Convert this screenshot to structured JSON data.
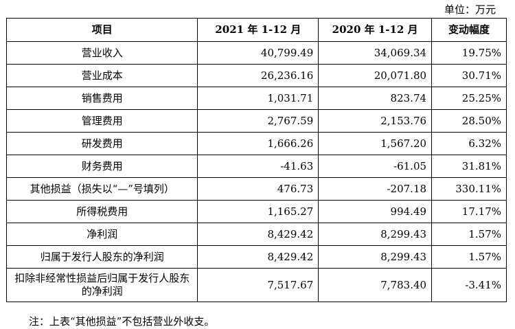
{
  "unit": "单位：万元",
  "table": {
    "headers": [
      "项目",
      "2021 年 1-12 月",
      "2020 年 1-12 月",
      "变动幅度"
    ],
    "rows": [
      {
        "item": "营业收入",
        "y2021": "40,799.49",
        "y2020": "34,069.34",
        "change": "19.75%"
      },
      {
        "item": "营业成本",
        "y2021": "26,236.16",
        "y2020": "20,071.80",
        "change": "30.71%"
      },
      {
        "item": "销售费用",
        "y2021": "1,031.71",
        "y2020": "823.74",
        "change": "25.25%"
      },
      {
        "item": "管理费用",
        "y2021": "2,767.59",
        "y2020": "2,153.76",
        "change": "28.50%"
      },
      {
        "item": "研发费用",
        "y2021": "1,666.26",
        "y2020": "1,567.20",
        "change": "6.32%"
      },
      {
        "item": "财务费用",
        "y2021": "-41.63",
        "y2020": "-61.05",
        "change": "31.81%"
      },
      {
        "item": "其他损益（损失以“—”号填列）",
        "y2021": "476.73",
        "y2020": "-207.18",
        "change": "330.11%"
      },
      {
        "item": "所得税费用",
        "y2021": "1,165.27",
        "y2020": "994.49",
        "change": "17.17%"
      },
      {
        "item": "净利润",
        "y2021": "8,429.42",
        "y2020": "8,299.43",
        "change": "1.57%"
      },
      {
        "item": "归属于发行人股东的净利润",
        "y2021": "8,429.42",
        "y2020": "8,299.43",
        "change": "1.57%"
      },
      {
        "item": "扣除非经常性损益后归属于发行人股东的净利润",
        "y2021": "7,517.67",
        "y2020": "7,783.40",
        "change": "-3.41%"
      }
    ]
  },
  "note": "注：上表“其他损益”不包括营业外收支。"
}
